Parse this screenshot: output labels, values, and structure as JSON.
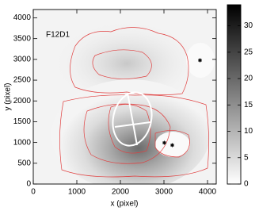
{
  "chart_data": {
    "type": "image",
    "annotation": "F12D1",
    "x_label": "x (pixel)",
    "y_label": "y (pixel)",
    "xlim": [
      0,
      4200
    ],
    "ylim": [
      0,
      4200
    ],
    "xticks": [
      0,
      1000,
      2000,
      3000,
      4000
    ],
    "yticks": [
      0,
      500,
      1000,
      1500,
      2000,
      2500,
      3000,
      3500,
      4000
    ],
    "colorbar": {
      "lim": [
        0,
        34
      ],
      "ticks": [
        0,
        5,
        10,
        15,
        20,
        25,
        30
      ]
    }
  }
}
